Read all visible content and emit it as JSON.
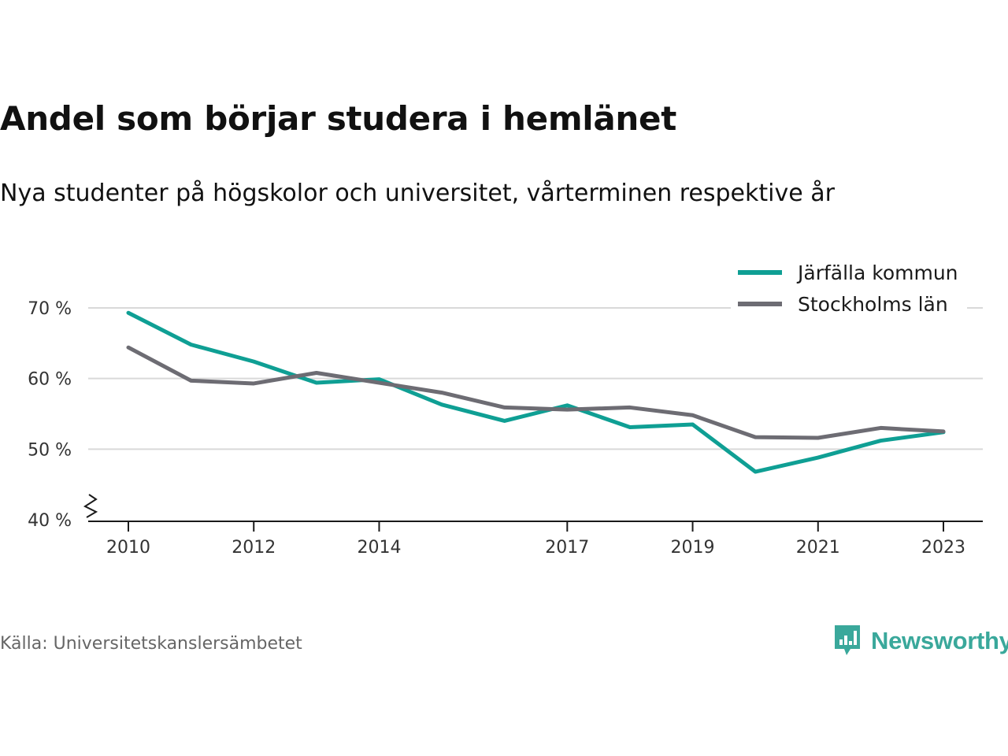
{
  "chart_data": {
    "type": "line",
    "title": "Andel som börjar studera i hemlänet",
    "subtitle": "Nya studenter på högskolor och universitet, vårterminen respektive år",
    "x": [
      2010,
      2011,
      2012,
      2013,
      2014,
      2015,
      2016,
      2017,
      2018,
      2019,
      2020,
      2021,
      2022,
      2023
    ],
    "x_tick_labels": [
      "2010",
      "2012",
      "2014",
      "2017",
      "2019",
      "2021",
      "2023"
    ],
    "y_ticks": [
      40,
      50,
      60,
      70
    ],
    "y_tick_labels": [
      "40 %",
      "50 %",
      "60 %",
      "70 %"
    ],
    "ylim": [
      40,
      70
    ],
    "y_axis_break": true,
    "grid": "horizontal",
    "legend_position": "top-right",
    "series": [
      {
        "name": "Järfälla kommun",
        "color": "#0f9f94",
        "values": [
          69.3,
          64.8,
          62.4,
          59.4,
          59.9,
          56.3,
          54.0,
          56.2,
          53.1,
          53.5,
          46.8,
          48.8,
          51.2,
          52.4
        ]
      },
      {
        "name": "Stockholms län",
        "color": "#6d6c73",
        "values": [
          64.4,
          59.7,
          59.3,
          60.8,
          59.4,
          58.0,
          55.9,
          55.6,
          55.9,
          54.8,
          51.7,
          51.6,
          53.0,
          52.5
        ]
      }
    ]
  },
  "source": "Källa: Universitetskanslersämbetet",
  "brand": {
    "name": "Newsworthy",
    "icon": "newsworthy-logo-icon",
    "color": "#3aa89b"
  }
}
